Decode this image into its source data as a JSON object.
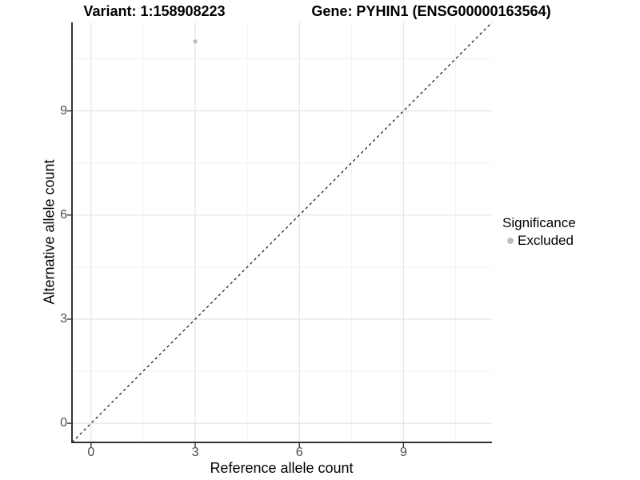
{
  "titles": {
    "variant": "Variant: 1:158908223",
    "gene": "Gene: PYHIN1 (ENSG00000163564)"
  },
  "chart_data": {
    "type": "scatter",
    "title_left": "Variant: 1:158908223",
    "title_right": "Gene: PYHIN1 (ENSG00000163564)",
    "xlabel": "Reference allele count",
    "ylabel": "Alternative allele count",
    "xlim": [
      -0.55,
      11.55
    ],
    "ylim": [
      -0.55,
      11.55
    ],
    "x_ticks": [
      0,
      3,
      6,
      9
    ],
    "y_ticks": [
      0,
      3,
      6,
      9
    ],
    "x_minor_ticks": [
      1.5,
      4.5,
      7.5,
      10.5
    ],
    "y_minor_ticks": [
      1.5,
      4.5,
      7.5,
      10.5
    ],
    "grid": "major+minor",
    "points": [
      {
        "x": 3,
        "y": 11,
        "significance": "Excluded"
      }
    ],
    "reference_line": {
      "type": "identity",
      "slope": 1,
      "intercept": 0,
      "style": "dashed",
      "color": "#000000"
    },
    "legend": {
      "position": "right",
      "title": "Significance",
      "items": [
        {
          "label": "Excluded",
          "color": "#bdbdbd"
        }
      ]
    },
    "colors": {
      "background": "#ffffff",
      "point": "#bdbdbd",
      "grid_major": "#e3e3e3",
      "grid_minor": "#f1f1f1",
      "axis_line": "#333333",
      "tick_mark": "#333333",
      "tick_label": "#4d4d4d",
      "text": "#000000"
    }
  }
}
